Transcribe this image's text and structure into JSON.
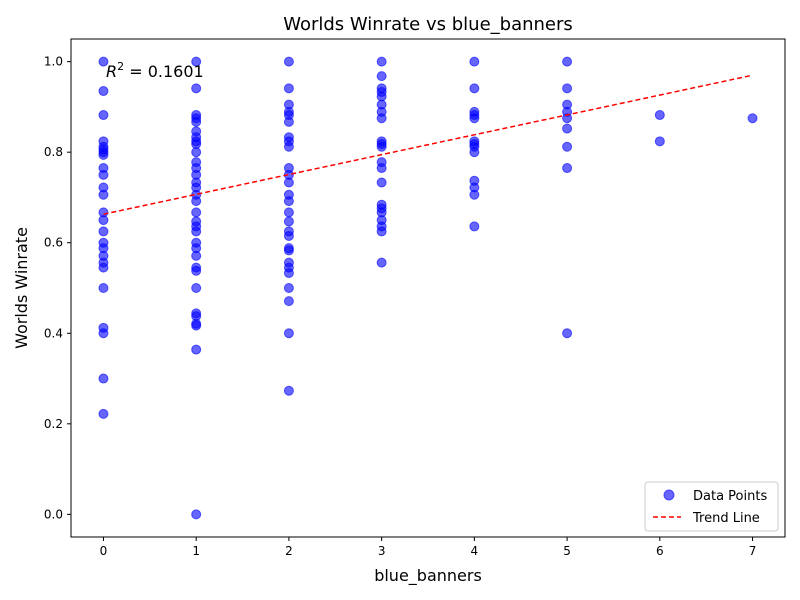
{
  "chart_data": {
    "type": "scatter",
    "title": "Worlds Winrate vs blue_banners",
    "xlabel": "blue_banners",
    "ylabel": "Worlds Winrate",
    "xlim": [
      -0.35,
      7.35
    ],
    "ylim": [
      -0.05,
      1.05
    ],
    "xticks": [
      0,
      1,
      2,
      3,
      4,
      5,
      6,
      7
    ],
    "yticks": [
      0.0,
      0.2,
      0.4,
      0.6,
      0.8,
      1.0
    ],
    "xtick_labels": [
      "0",
      "1",
      "2",
      "3",
      "4",
      "5",
      "6",
      "7"
    ],
    "ytick_labels": [
      "0.0",
      "0.2",
      "0.4",
      "0.6",
      "0.8",
      "1.0"
    ],
    "grid": false,
    "legend_position": "bottom-right",
    "annotation_prefix": "R",
    "annotation_superscript": "2",
    "annotation_suffix": " = 0.1601",
    "series": [
      {
        "name": "Data Points",
        "kind": "scatter",
        "color": "#0000ff",
        "points": [
          {
            "x": 0,
            "y": 1.0
          },
          {
            "x": 0,
            "y": 0.935
          },
          {
            "x": 0,
            "y": 0.882
          },
          {
            "x": 0,
            "y": 0.824
          },
          {
            "x": 0,
            "y": 0.812
          },
          {
            "x": 0,
            "y": 0.806
          },
          {
            "x": 0,
            "y": 0.8
          },
          {
            "x": 0,
            "y": 0.794
          },
          {
            "x": 0,
            "y": 0.765
          },
          {
            "x": 0,
            "y": 0.75
          },
          {
            "x": 0,
            "y": 0.722
          },
          {
            "x": 0,
            "y": 0.706
          },
          {
            "x": 0,
            "y": 0.667
          },
          {
            "x": 0,
            "y": 0.65
          },
          {
            "x": 0,
            "y": 0.625
          },
          {
            "x": 0,
            "y": 0.6
          },
          {
            "x": 0,
            "y": 0.588
          },
          {
            "x": 0,
            "y": 0.571
          },
          {
            "x": 0,
            "y": 0.556
          },
          {
            "x": 0,
            "y": 0.545
          },
          {
            "x": 0,
            "y": 0.5
          },
          {
            "x": 0,
            "y": 0.412
          },
          {
            "x": 0,
            "y": 0.4
          },
          {
            "x": 0,
            "y": 0.3
          },
          {
            "x": 0,
            "y": 0.222
          },
          {
            "x": 1,
            "y": 1.0
          },
          {
            "x": 1,
            "y": 0.941
          },
          {
            "x": 1,
            "y": 0.882
          },
          {
            "x": 1,
            "y": 0.875
          },
          {
            "x": 1,
            "y": 0.867
          },
          {
            "x": 1,
            "y": 0.846
          },
          {
            "x": 1,
            "y": 0.833
          },
          {
            "x": 1,
            "y": 0.824
          },
          {
            "x": 1,
            "y": 0.818
          },
          {
            "x": 1,
            "y": 0.8
          },
          {
            "x": 1,
            "y": 0.778
          },
          {
            "x": 1,
            "y": 0.765
          },
          {
            "x": 1,
            "y": 0.75
          },
          {
            "x": 1,
            "y": 0.733
          },
          {
            "x": 1,
            "y": 0.722
          },
          {
            "x": 1,
            "y": 0.706
          },
          {
            "x": 1,
            "y": 0.692
          },
          {
            "x": 1,
            "y": 0.667
          },
          {
            "x": 1,
            "y": 0.647
          },
          {
            "x": 1,
            "y": 0.636
          },
          {
            "x": 1,
            "y": 0.625
          },
          {
            "x": 1,
            "y": 0.6
          },
          {
            "x": 1,
            "y": 0.588
          },
          {
            "x": 1,
            "y": 0.571
          },
          {
            "x": 1,
            "y": 0.545
          },
          {
            "x": 1,
            "y": 0.538
          },
          {
            "x": 1,
            "y": 0.5
          },
          {
            "x": 1,
            "y": 0.444
          },
          {
            "x": 1,
            "y": 0.438
          },
          {
            "x": 1,
            "y": 0.421
          },
          {
            "x": 1,
            "y": 0.417
          },
          {
            "x": 1,
            "y": 0.364
          },
          {
            "x": 1,
            "y": 0.0
          },
          {
            "x": 2,
            "y": 1.0
          },
          {
            "x": 2,
            "y": 0.941
          },
          {
            "x": 2,
            "y": 0.905
          },
          {
            "x": 2,
            "y": 0.889
          },
          {
            "x": 2,
            "y": 0.882
          },
          {
            "x": 2,
            "y": 0.867
          },
          {
            "x": 2,
            "y": 0.833
          },
          {
            "x": 2,
            "y": 0.824
          },
          {
            "x": 2,
            "y": 0.812
          },
          {
            "x": 2,
            "y": 0.765
          },
          {
            "x": 2,
            "y": 0.75
          },
          {
            "x": 2,
            "y": 0.733
          },
          {
            "x": 2,
            "y": 0.706
          },
          {
            "x": 2,
            "y": 0.692
          },
          {
            "x": 2,
            "y": 0.667
          },
          {
            "x": 2,
            "y": 0.647
          },
          {
            "x": 2,
            "y": 0.625
          },
          {
            "x": 2,
            "y": 0.615
          },
          {
            "x": 2,
            "y": 0.588
          },
          {
            "x": 2,
            "y": 0.583
          },
          {
            "x": 2,
            "y": 0.556
          },
          {
            "x": 2,
            "y": 0.545
          },
          {
            "x": 2,
            "y": 0.533
          },
          {
            "x": 2,
            "y": 0.5
          },
          {
            "x": 2,
            "y": 0.471
          },
          {
            "x": 2,
            "y": 0.4
          },
          {
            "x": 2,
            "y": 0.273
          },
          {
            "x": 3,
            "y": 1.0
          },
          {
            "x": 3,
            "y": 0.968
          },
          {
            "x": 3,
            "y": 0.941
          },
          {
            "x": 3,
            "y": 0.933
          },
          {
            "x": 3,
            "y": 0.923
          },
          {
            "x": 3,
            "y": 0.905
          },
          {
            "x": 3,
            "y": 0.889
          },
          {
            "x": 3,
            "y": 0.875
          },
          {
            "x": 3,
            "y": 0.824
          },
          {
            "x": 3,
            "y": 0.818
          },
          {
            "x": 3,
            "y": 0.812
          },
          {
            "x": 3,
            "y": 0.778
          },
          {
            "x": 3,
            "y": 0.765
          },
          {
            "x": 3,
            "y": 0.733
          },
          {
            "x": 3,
            "y": 0.684
          },
          {
            "x": 3,
            "y": 0.676
          },
          {
            "x": 3,
            "y": 0.667
          },
          {
            "x": 3,
            "y": 0.65
          },
          {
            "x": 3,
            "y": 0.636
          },
          {
            "x": 3,
            "y": 0.625
          },
          {
            "x": 3,
            "y": 0.556
          },
          {
            "x": 4,
            "y": 1.0
          },
          {
            "x": 4,
            "y": 0.941
          },
          {
            "x": 4,
            "y": 0.889
          },
          {
            "x": 4,
            "y": 0.882
          },
          {
            "x": 4,
            "y": 0.875
          },
          {
            "x": 4,
            "y": 0.824
          },
          {
            "x": 4,
            "y": 0.818
          },
          {
            "x": 4,
            "y": 0.812
          },
          {
            "x": 4,
            "y": 0.8
          },
          {
            "x": 4,
            "y": 0.737
          },
          {
            "x": 4,
            "y": 0.722
          },
          {
            "x": 4,
            "y": 0.706
          },
          {
            "x": 4,
            "y": 0.636
          },
          {
            "x": 5,
            "y": 1.0
          },
          {
            "x": 5,
            "y": 0.941
          },
          {
            "x": 5,
            "y": 0.905
          },
          {
            "x": 5,
            "y": 0.889
          },
          {
            "x": 5,
            "y": 0.875
          },
          {
            "x": 5,
            "y": 0.852
          },
          {
            "x": 5,
            "y": 0.812
          },
          {
            "x": 5,
            "y": 0.765
          },
          {
            "x": 5,
            "y": 0.4
          },
          {
            "x": 6,
            "y": 0.882
          },
          {
            "x": 6,
            "y": 0.824
          },
          {
            "x": 7,
            "y": 0.875
          }
        ]
      },
      {
        "name": "Trend Line",
        "kind": "line",
        "style": "dashed",
        "color": "#ff0000",
        "points": [
          {
            "x": 0,
            "y": 0.663
          },
          {
            "x": 7,
            "y": 0.97
          }
        ]
      }
    ]
  }
}
